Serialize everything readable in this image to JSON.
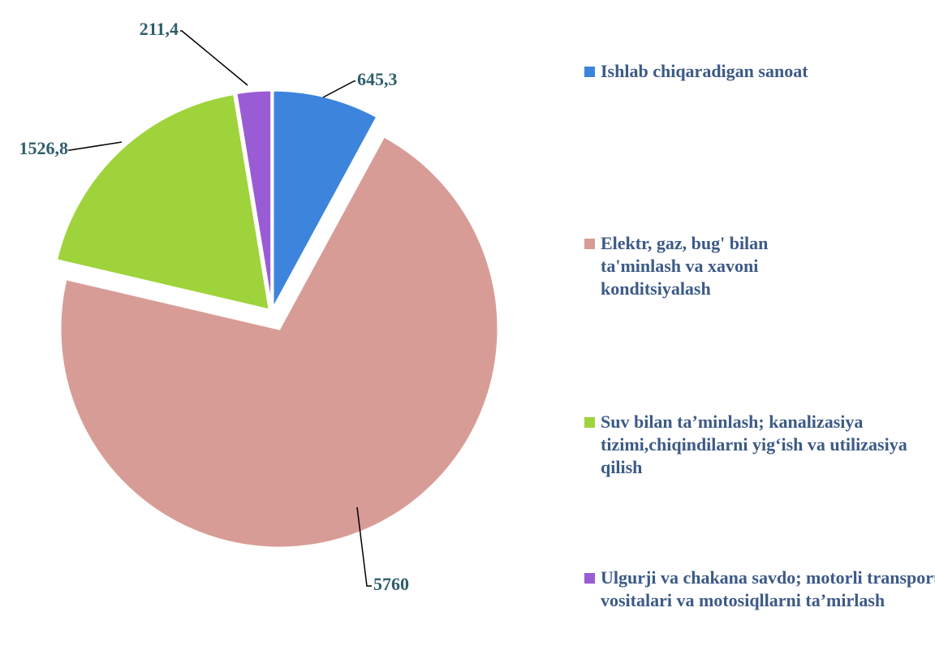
{
  "chart_data": {
    "type": "pie",
    "categories": [
      "Ishlab chiqaradigan sanoat",
      "Elektr, gaz, bug' bilan ta'minlash va xavoni konditsiyalash",
      "Suv bilan ta’minlash; kanalizasiya tizimi,chiqindilarni yig‘ish va utilizasiya qilish",
      "Ulgurji va chakana savdo; motorli transport vositalari va motosiqllarni ta’mirlash"
    ],
    "values": [
      645.3,
      5760,
      1526.8,
      211.4
    ],
    "value_labels": [
      "645,3",
      "5760",
      "1526,8",
      "211,4"
    ],
    "colors": [
      "#3d84dc",
      "#d89c96",
      "#9fd33c",
      "#9a5cd4"
    ],
    "legend": "right"
  }
}
